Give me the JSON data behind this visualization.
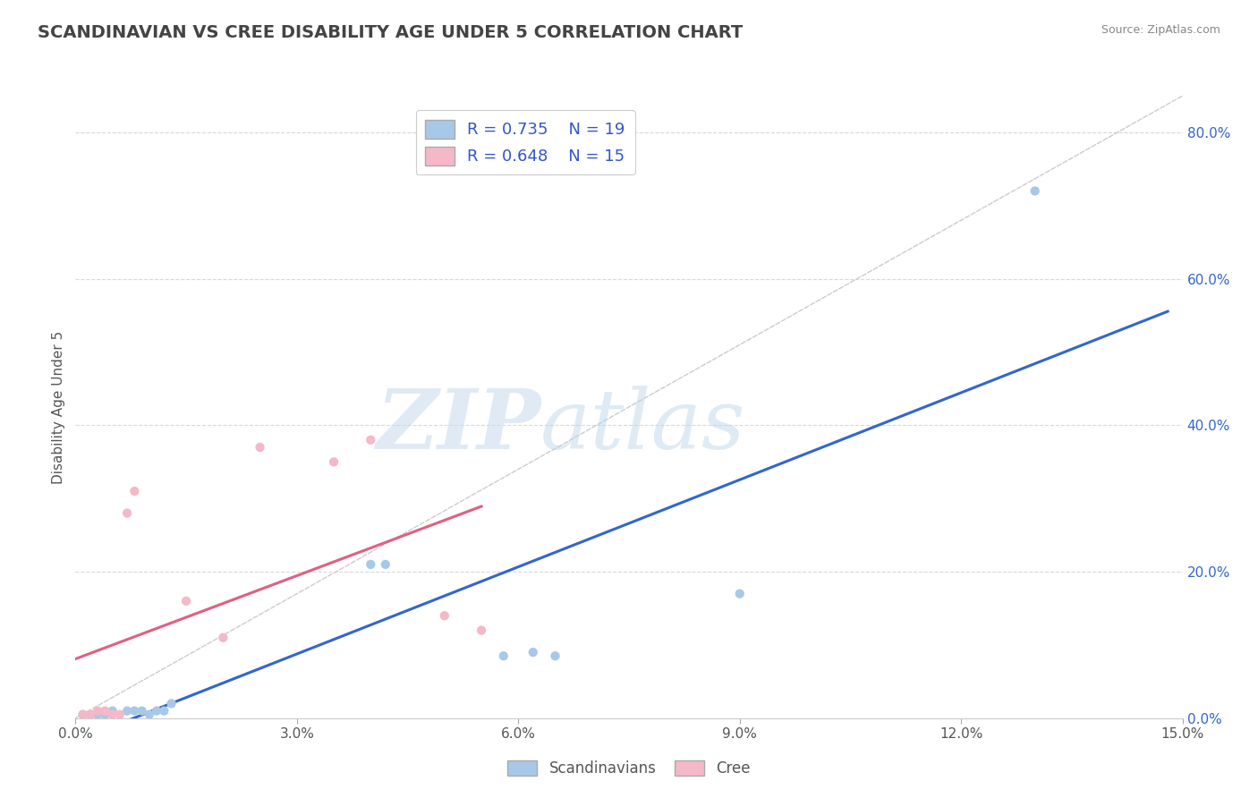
{
  "title": "SCANDINAVIAN VS CREE DISABILITY AGE UNDER 5 CORRELATION CHART",
  "source": "Source: ZipAtlas.com",
  "ylabel": "Disability Age Under 5",
  "xlim": [
    0.0,
    0.15
  ],
  "ylim": [
    0.0,
    0.85
  ],
  "xticks": [
    0.0,
    0.03,
    0.06,
    0.09,
    0.12,
    0.15
  ],
  "xtick_labels": [
    "0.0%",
    "3.0%",
    "6.0%",
    "9.0%",
    "12.0%",
    "15.0%"
  ],
  "yticks_right": [
    0.0,
    0.2,
    0.4,
    0.6,
    0.8
  ],
  "ytick_right_labels": [
    "0.0%",
    "20.0%",
    "40.0%",
    "60.0%",
    "80.0%"
  ],
  "background_color": "#ffffff",
  "grid_color": "#d8d8d8",
  "title_color": "#444444",
  "title_fontsize": 14,
  "watermark_zip": "ZIP",
  "watermark_atlas": "atlas",
  "scatter_blue_color": "#a8c8e8",
  "scatter_pink_color": "#f4b8c8",
  "line_blue_color": "#3366cc",
  "line_pink_color": "#e06080",
  "legend_text_color": "#3355cc",
  "ref_line_color": "#cccccc",
  "legend_label1": "Scandinavians",
  "legend_label2": "Cree",
  "scandinavian_x": [
    0.001,
    0.002,
    0.003,
    0.004,
    0.005,
    0.007,
    0.008,
    0.009,
    0.01,
    0.011,
    0.012,
    0.013,
    0.04,
    0.042,
    0.058,
    0.062,
    0.065,
    0.09,
    0.13
  ],
  "scandinavian_y": [
    0.005,
    0.005,
    0.005,
    0.005,
    0.01,
    0.01,
    0.01,
    0.01,
    0.005,
    0.01,
    0.01,
    0.02,
    0.21,
    0.21,
    0.085,
    0.09,
    0.085,
    0.17,
    0.72
  ],
  "cree_x": [
    0.001,
    0.002,
    0.003,
    0.004,
    0.005,
    0.006,
    0.007,
    0.008,
    0.015,
    0.02,
    0.025,
    0.035,
    0.04,
    0.05,
    0.055
  ],
  "cree_y": [
    0.005,
    0.005,
    0.01,
    0.01,
    0.005,
    0.005,
    0.28,
    0.31,
    0.16,
    0.11,
    0.37,
    0.35,
    0.38,
    0.14,
    0.12
  ]
}
